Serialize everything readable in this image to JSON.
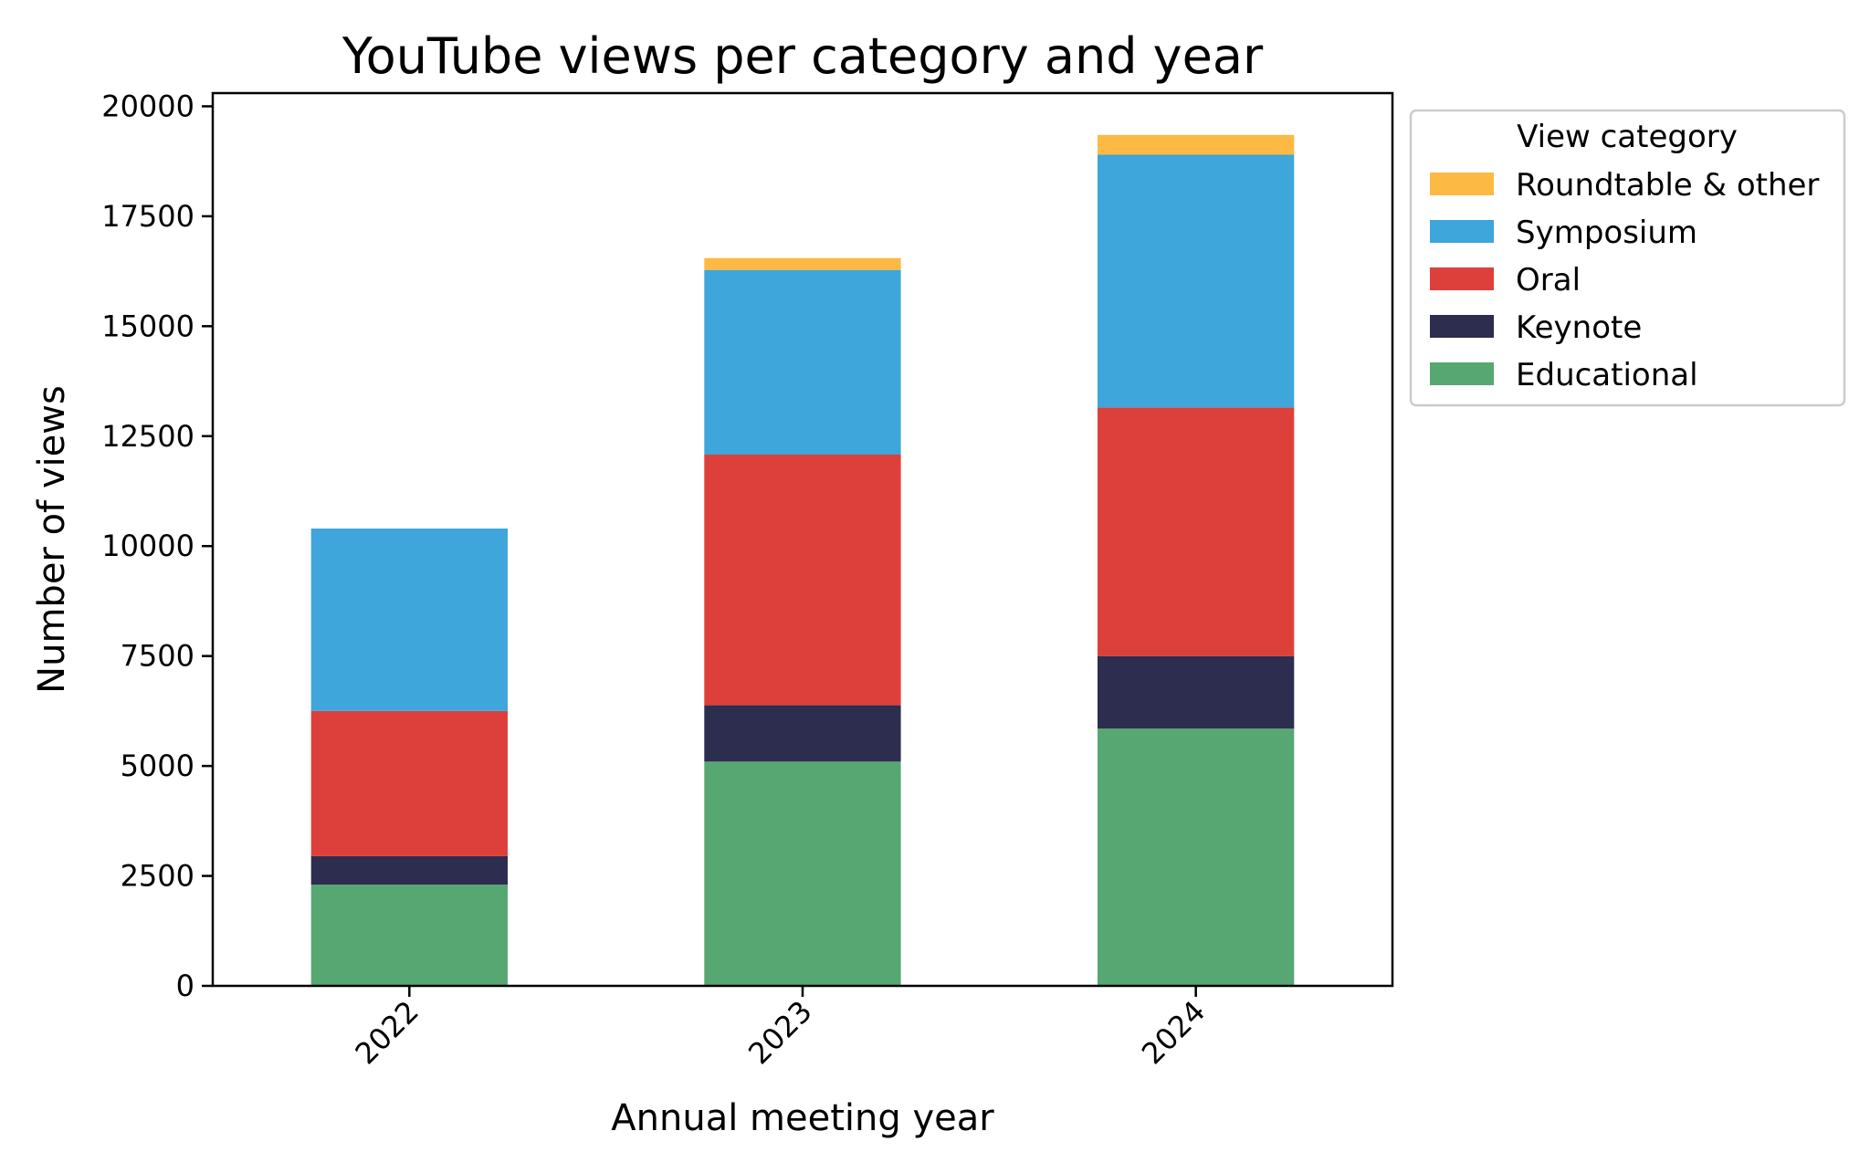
{
  "chart_data": {
    "type": "bar",
    "stacked": true,
    "title": "YouTube views per category and year",
    "xlabel": "Annual meeting year",
    "ylabel": "Number of views",
    "categories": [
      "2022",
      "2023",
      "2024"
    ],
    "ylim": [
      0,
      20300
    ],
    "yticks": [
      0,
      2500,
      5000,
      7500,
      10000,
      12500,
      15000,
      17500,
      20000
    ],
    "ytick_labels": [
      "0",
      "2500",
      "5000",
      "7500",
      "10000",
      "12500",
      "15000",
      "17500",
      "20000"
    ],
    "grid": false,
    "legend": {
      "title": "View category",
      "placement": "outside-top-right"
    },
    "series": [
      {
        "name": "Educational",
        "color": "#57a773",
        "values": [
          2300,
          5100,
          5850
        ]
      },
      {
        "name": "Keynote",
        "color": "#2d2d4f",
        "values": [
          650,
          1280,
          1650
        ]
      },
      {
        "name": "Oral",
        "color": "#dd403a",
        "values": [
          3300,
          5700,
          5650
        ]
      },
      {
        "name": "Symposium",
        "color": "#3ea6da",
        "values": [
          4150,
          4200,
          5750
        ]
      },
      {
        "name": "Roundtable & other",
        "color": "#fcb944",
        "values": [
          0,
          270,
          450
        ]
      }
    ]
  }
}
